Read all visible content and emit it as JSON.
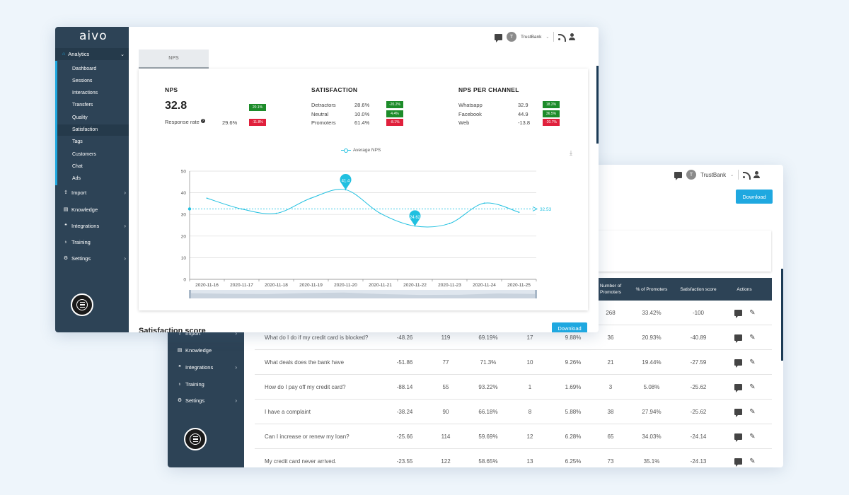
{
  "back_window": {
    "sidebar": {
      "items": [
        {
          "label": "Import",
          "icon": "upload-icon",
          "has_chevron": true
        },
        {
          "label": "Knowledge",
          "icon": "book-icon",
          "has_chevron": false
        },
        {
          "label": "Integrations",
          "icon": "chat-bubbles-icon",
          "has_chevron": true
        },
        {
          "label": "Training",
          "icon": "lightbulb-icon",
          "has_chevron": false
        },
        {
          "label": "Settings",
          "icon": "gear-icon",
          "has_chevron": true
        }
      ]
    },
    "header": {
      "avatar_letter": "T",
      "account": "TrustBank"
    },
    "download_label": "Download",
    "table": {
      "headers": [
        "Number of Promoters",
        "% of Promoters",
        "Satisfaction score",
        "Actions"
      ],
      "first_row": {
        "promoters": "268",
        "pct": "33.42%",
        "score": "-100"
      },
      "rows": [
        {
          "question": "What do I do if my credit card is blocked?",
          "nps": "-48.26",
          "responses": "119",
          "pct_detractors": "69.19%",
          "neutral": "17",
          "pct_neutral": "9.88%",
          "promoters": "36",
          "pct_promoters": "20.93%",
          "score": "-40.89"
        },
        {
          "question": "What deals does the bank have",
          "nps": "-51.86",
          "responses": "77",
          "pct_detractors": "71.3%",
          "neutral": "10",
          "pct_neutral": "9.26%",
          "promoters": "21",
          "pct_promoters": "19.44%",
          "score": "-27.59"
        },
        {
          "question": "How do I pay off my credit card?",
          "nps": "-88.14",
          "responses": "55",
          "pct_detractors": "93.22%",
          "neutral": "1",
          "pct_neutral": "1.69%",
          "promoters": "3",
          "pct_promoters": "5.08%",
          "score": "-25.62"
        },
        {
          "question": "I have a complaint",
          "nps": "-38.24",
          "responses": "90",
          "pct_detractors": "66.18%",
          "neutral": "8",
          "pct_neutral": "5.88%",
          "promoters": "38",
          "pct_promoters": "27.94%",
          "score": "-25.62"
        },
        {
          "question": "Can I increase or renew my loan?",
          "nps": "-25.66",
          "responses": "114",
          "pct_detractors": "59.69%",
          "neutral": "12",
          "pct_neutral": "6.28%",
          "promoters": "65",
          "pct_promoters": "34.03%",
          "score": "-24.14"
        },
        {
          "question": "My credit card never arrived.",
          "nps": "-23.55",
          "responses": "122",
          "pct_detractors": "58.65%",
          "neutral": "13",
          "pct_neutral": "6.25%",
          "promoters": "73",
          "pct_promoters": "35.1%",
          "score": "-24.13"
        }
      ]
    }
  },
  "front_window": {
    "logo": "aivo",
    "sidebar": {
      "analytics_label": "Analytics",
      "sub_items": [
        "Dashboard",
        "Sessions",
        "Interactions",
        "Transfers",
        "Quality",
        "Satisfaction",
        "Tags",
        "Customers",
        "Chat",
        "Ads"
      ],
      "active_sub_item": "Satisfaction",
      "items": [
        {
          "label": "Import",
          "icon": "upload-icon",
          "has_chevron": true
        },
        {
          "label": "Knowledge",
          "icon": "book-icon",
          "has_chevron": false
        },
        {
          "label": "Integrations",
          "icon": "chat-bubbles-icon",
          "has_chevron": true
        },
        {
          "label": "Training",
          "icon": "lightbulb-icon",
          "has_chevron": false
        },
        {
          "label": "Settings",
          "icon": "gear-icon",
          "has_chevron": true
        }
      ]
    },
    "header": {
      "avatar_letter": "T",
      "account": "TrustBank"
    },
    "tab_label": "NPS",
    "nps": {
      "title": "NPS",
      "value": "32.8",
      "value_badge": "20.1%",
      "response_rate_label": "Response rate",
      "response_rate": "29.6%",
      "response_rate_badge": "-11.8%"
    },
    "satisfaction": {
      "title": "SATISFACTION",
      "rows": [
        {
          "label": "Detractors",
          "value": "28.6%",
          "badge": "-20.2%",
          "trend": "up"
        },
        {
          "label": "Neutral",
          "value": "10.0%",
          "badge": "4.4%",
          "trend": "up"
        },
        {
          "label": "Promoters",
          "value": "61.4%",
          "badge": "-8.1%",
          "trend": "down"
        }
      ]
    },
    "nps_per_channel": {
      "title": "NPS PER CHANNEL",
      "rows": [
        {
          "label": "Whatsapp",
          "value": "32.9",
          "badge": "18.2%",
          "trend": "up"
        },
        {
          "label": "Facebook",
          "value": "44.9",
          "badge": "36.5%",
          "trend": "up"
        },
        {
          "label": "Web",
          "value": "-13.8",
          "badge": "-20.7%",
          "trend": "down"
        }
      ]
    },
    "download_label": "Download",
    "section_title_partial": "Satisfaction score",
    "colors": {
      "sidebar": "#2d4356",
      "accent": "#1fa8e0",
      "line": "#21c0e0",
      "up": "#1d8c2a",
      "down": "#e0203c"
    }
  },
  "chart_data": {
    "type": "line",
    "legend": "Average NPS",
    "categories": [
      "2020-11-16",
      "2020-11-17",
      "2020-11-18",
      "2020-11-19",
      "2020-11-20",
      "2020-11-21",
      "2020-11-22",
      "2020-11-23",
      "2020-11-24",
      "2020-11-25"
    ],
    "series": [
      {
        "name": "Average NPS",
        "values": [
          37.5,
          32.5,
          30.5,
          37.5,
          41.4,
          30.5,
          24.62,
          25.8,
          35.2,
          31.0
        ]
      }
    ],
    "ylim": [
      0,
      50
    ],
    "yticks": [
      0,
      10,
      20,
      30,
      40,
      50
    ],
    "average_line": 32.53,
    "average_label": "32.53",
    "max_pin": {
      "index": 4,
      "label": "41.4"
    },
    "min_pin": {
      "index": 6,
      "label": "24.62"
    },
    "grid": true
  }
}
